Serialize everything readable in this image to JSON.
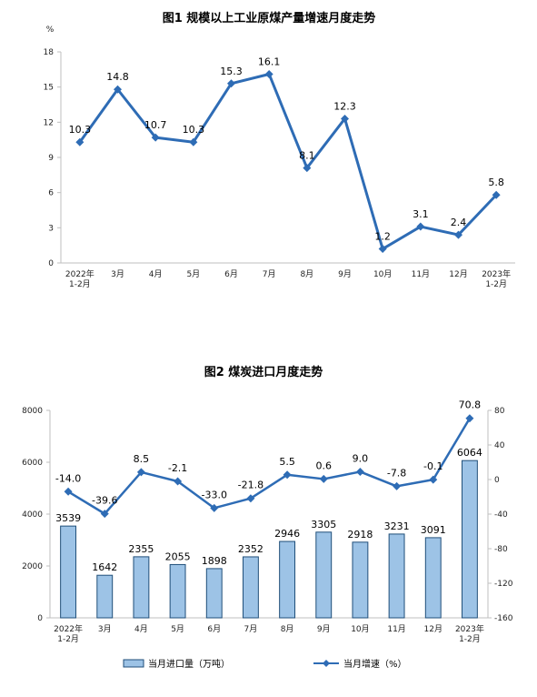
{
  "chart_data": [
    {
      "type": "line",
      "title": "图1  规模以上工业原煤产量增速月度走势",
      "ylabel": "%",
      "categories": [
        [
          "2022年",
          "1-2月"
        ],
        [
          "3月"
        ],
        [
          "4月"
        ],
        [
          "5月"
        ],
        [
          "6月"
        ],
        [
          "7月"
        ],
        [
          "8月"
        ],
        [
          "9月"
        ],
        [
          "10月"
        ],
        [
          "11月"
        ],
        [
          "12月"
        ],
        [
          "2023年",
          "1-2月"
        ]
      ],
      "values": [
        10.3,
        14.8,
        10.7,
        10.3,
        15.3,
        16.1,
        8.1,
        12.3,
        1.2,
        3.1,
        2.4,
        5.8
      ],
      "ylim": [
        0,
        18
      ],
      "yticks": [
        "0",
        "3",
        "6",
        "9",
        "12",
        "15",
        "18"
      ],
      "color": "#2e6cb5"
    },
    {
      "type": "bar+line",
      "title": "图2  煤炭进口月度走势",
      "categories": [
        [
          "2022年",
          "1-2月"
        ],
        [
          "3月"
        ],
        [
          "4月"
        ],
        [
          "5月"
        ],
        [
          "6月"
        ],
        [
          "7月"
        ],
        [
          "8月"
        ],
        [
          "9月"
        ],
        [
          "10月"
        ],
        [
          "11月"
        ],
        [
          "12月"
        ],
        [
          "2023年",
          "1-2月"
        ]
      ],
      "series": [
        {
          "name": "当月进口量（万吨）",
          "type": "bar",
          "axis": "left",
          "values": [
            3539,
            1642,
            2355,
            2055,
            1898,
            2352,
            2946,
            3305,
            2918,
            3231,
            3091,
            6064
          ],
          "labels": [
            "3539",
            "1642",
            "2355",
            "2055",
            "1898",
            "2352",
            "2946",
            "3305",
            "2918",
            "3231",
            "3091",
            "6064"
          ]
        },
        {
          "name": "当月增速（%）",
          "type": "line",
          "axis": "right",
          "values": [
            -14.0,
            -39.6,
            8.5,
            -2.1,
            -33.0,
            -21.8,
            5.5,
            0.6,
            9.0,
            -7.8,
            -0.1,
            70.8
          ],
          "labels": [
            "-14.0",
            "-39.6",
            "8.5",
            "-2.1",
            "-33.0",
            "-21.8",
            "5.5",
            "0.6",
            "9.0",
            "-7.8",
            "-0.1",
            "70.8"
          ]
        }
      ],
      "ylim_left": [
        0,
        8000
      ],
      "yticks_left": [
        "0",
        "2000",
        "4000",
        "6000",
        "8000"
      ],
      "ylim_right": [
        -160,
        80
      ],
      "yticks_right": [
        "-160",
        "-120",
        "-80",
        "-40",
        "0",
        "40",
        "80"
      ],
      "legend_position": "bottom",
      "bar_fill": "#9dc3e6",
      "bar_stroke": "#1f4e79",
      "line_color": "#2e6cb5"
    }
  ]
}
